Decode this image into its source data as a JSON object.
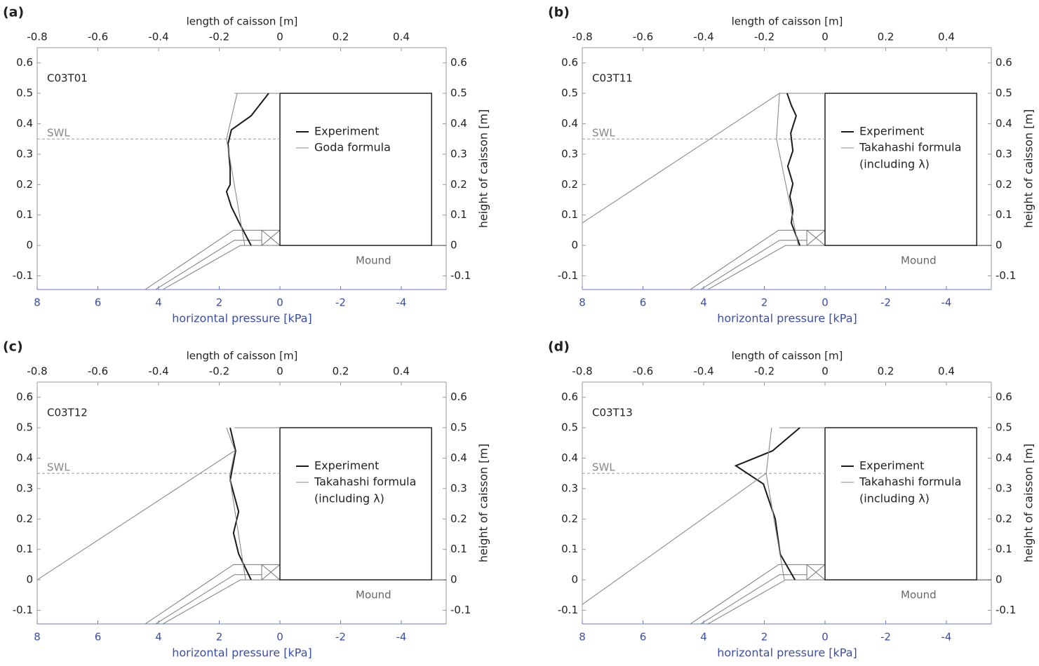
{
  "chart_data": [
    {
      "type": "line",
      "panel_label": "(a)",
      "title": "C03T01",
      "x_label": "length of caisson [m]",
      "x2_label": "horizontal pressure [kPa]",
      "y_label": "height of caisson [m]",
      "annotations": [
        "SWL",
        "Mound"
      ],
      "swl": 0.35,
      "caisson": {
        "length": 0.5,
        "height": 0.5
      },
      "xlim": [
        -0.8,
        0.548
      ],
      "xticks": [
        -0.8,
        -0.6,
        -0.4,
        -0.2,
        0,
        0.2,
        0.4
      ],
      "x2lim": [
        8,
        -5.48
      ],
      "x2ticks": [
        8,
        6,
        4,
        2,
        0,
        -2,
        -4
      ],
      "ylim": [
        -0.145,
        0.65
      ],
      "yticks": [
        -0.1,
        0,
        0.1,
        0.2,
        0.3,
        0.4,
        0.5,
        0.6
      ],
      "series": [
        {
          "name": "Experiment",
          "color": "#1a1a1a",
          "x": [
            0.37,
            0.95,
            1.6,
            1.71,
            1.64,
            1.64,
            1.76,
            1.6,
            1.34,
            0.95
          ],
          "values": [
            0.5,
            0.426,
            0.38,
            0.334,
            0.253,
            0.2,
            0.177,
            0.127,
            0.074,
            0
          ]
        },
        {
          "name": "Goda formula",
          "color": "#8a8a8a",
          "x": [
            1.41,
            1.76,
            1.16
          ],
          "values": [
            0.5,
            0.35,
            0
          ]
        }
      ]
    },
    {
      "type": "line",
      "panel_label": "(b)",
      "title": "C03T11",
      "x_label": "length of caisson [m]",
      "x2_label": "horizontal pressure [kPa]",
      "y_label": "height of caisson [m]",
      "annotations": [
        "SWL",
        "Mound"
      ],
      "swl": 0.35,
      "caisson": {
        "length": 0.5,
        "height": 0.5
      },
      "xlim": [
        -0.8,
        0.548
      ],
      "xticks": [
        -0.8,
        -0.6,
        -0.4,
        -0.2,
        0,
        0.2,
        0.4
      ],
      "x2lim": [
        8,
        -5.48
      ],
      "x2ticks": [
        8,
        6,
        4,
        2,
        0,
        -2,
        -4
      ],
      "ylim": [
        -0.145,
        0.65
      ],
      "yticks": [
        -0.1,
        0,
        0.1,
        0.2,
        0.3,
        0.4,
        0.5,
        0.6
      ],
      "series": [
        {
          "name": "Experiment",
          "color": "#1a1a1a",
          "x": [
            1.25,
            1.11,
            0.95,
            1.13,
            1.06,
            1.23,
            1.06,
            1.16,
            1.06,
            1.11,
            0.83
          ],
          "values": [
            0.5,
            0.46,
            0.426,
            0.369,
            0.311,
            0.26,
            0.203,
            0.161,
            0.115,
            0.074,
            0
          ]
        },
        {
          "name": "Takahashi formula",
          "subname": "(including λ)",
          "color": "#8a8a8a",
          "x": [
            8,
            1.5,
            1.6,
            0.88
          ],
          "values": [
            0.074,
            0.5,
            0.35,
            0
          ]
        }
      ]
    },
    {
      "type": "line",
      "panel_label": "(c)",
      "title": "C03T12",
      "x_label": "length of caisson [m]",
      "x2_label": "horizontal pressure [kPa]",
      "y_label": "height of caisson [m]",
      "annotations": [
        "SWL",
        "Mound"
      ],
      "swl": 0.35,
      "caisson": {
        "length": 0.5,
        "height": 0.5
      },
      "xlim": [
        -0.8,
        0.548
      ],
      "xticks": [
        -0.8,
        -0.6,
        -0.4,
        -0.2,
        0,
        0.2,
        0.4
      ],
      "x2lim": [
        8,
        -5.48
      ],
      "x2ticks": [
        8,
        6,
        4,
        2,
        0,
        -2,
        -4
      ],
      "ylim": [
        -0.145,
        0.65
      ],
      "yticks": [
        -0.1,
        0,
        0.1,
        0.2,
        0.3,
        0.4,
        0.5,
        0.6
      ],
      "series": [
        {
          "name": "Experiment",
          "color": "#1a1a1a",
          "x": [
            1.64,
            1.46,
            1.64,
            1.36,
            1.53,
            1.36,
            0.95
          ],
          "values": [
            0.5,
            0.424,
            0.327,
            0.224,
            0.154,
            0.085,
            0
          ]
        },
        {
          "name": "Takahashi formula",
          "subname": "(including λ)",
          "color": "#8a8a8a",
          "x": [
            8,
            1.48,
            1.76,
            1.48,
            1.66,
            1.13
          ],
          "values": [
            0,
            0.425,
            0.5,
            0.425,
            0.34,
            0
          ]
        }
      ]
    },
    {
      "type": "line",
      "panel_label": "(d)",
      "title": "C03T13",
      "x_label": "length of caisson [m]",
      "x2_label": "horizontal pressure [kPa]",
      "y_label": "height of caisson [m]",
      "annotations": [
        "SWL",
        "Mound"
      ],
      "swl": 0.35,
      "caisson": {
        "length": 0.5,
        "height": 0.5
      },
      "xlim": [
        -0.8,
        0.548
      ],
      "xticks": [
        -0.8,
        -0.6,
        -0.4,
        -0.2,
        0,
        0.2,
        0.4
      ],
      "x2lim": [
        8,
        -5.48
      ],
      "x2ticks": [
        8,
        6,
        4,
        2,
        0,
        -2,
        -4
      ],
      "ylim": [
        -0.145,
        0.65
      ],
      "yticks": [
        -0.1,
        0,
        0.1,
        0.2,
        0.3,
        0.4,
        0.5,
        0.6
      ],
      "series": [
        {
          "name": "Experiment",
          "color": "#1a1a1a",
          "x": [
            0.83,
            1.73,
            2.94,
            2.03,
            1.64,
            1.48,
            0.99
          ],
          "values": [
            0.5,
            0.424,
            0.375,
            0.315,
            0.2,
            0.085,
            0
          ]
        },
        {
          "name": "Takahashi formula",
          "subname": "(including λ)",
          "color": "#8a8a8a",
          "x": [
            8,
            1.94,
            1.76,
            1.94,
            1.34
          ],
          "values": [
            -0.081,
            0.35,
            0.5,
            0.35,
            0
          ]
        }
      ]
    }
  ]
}
